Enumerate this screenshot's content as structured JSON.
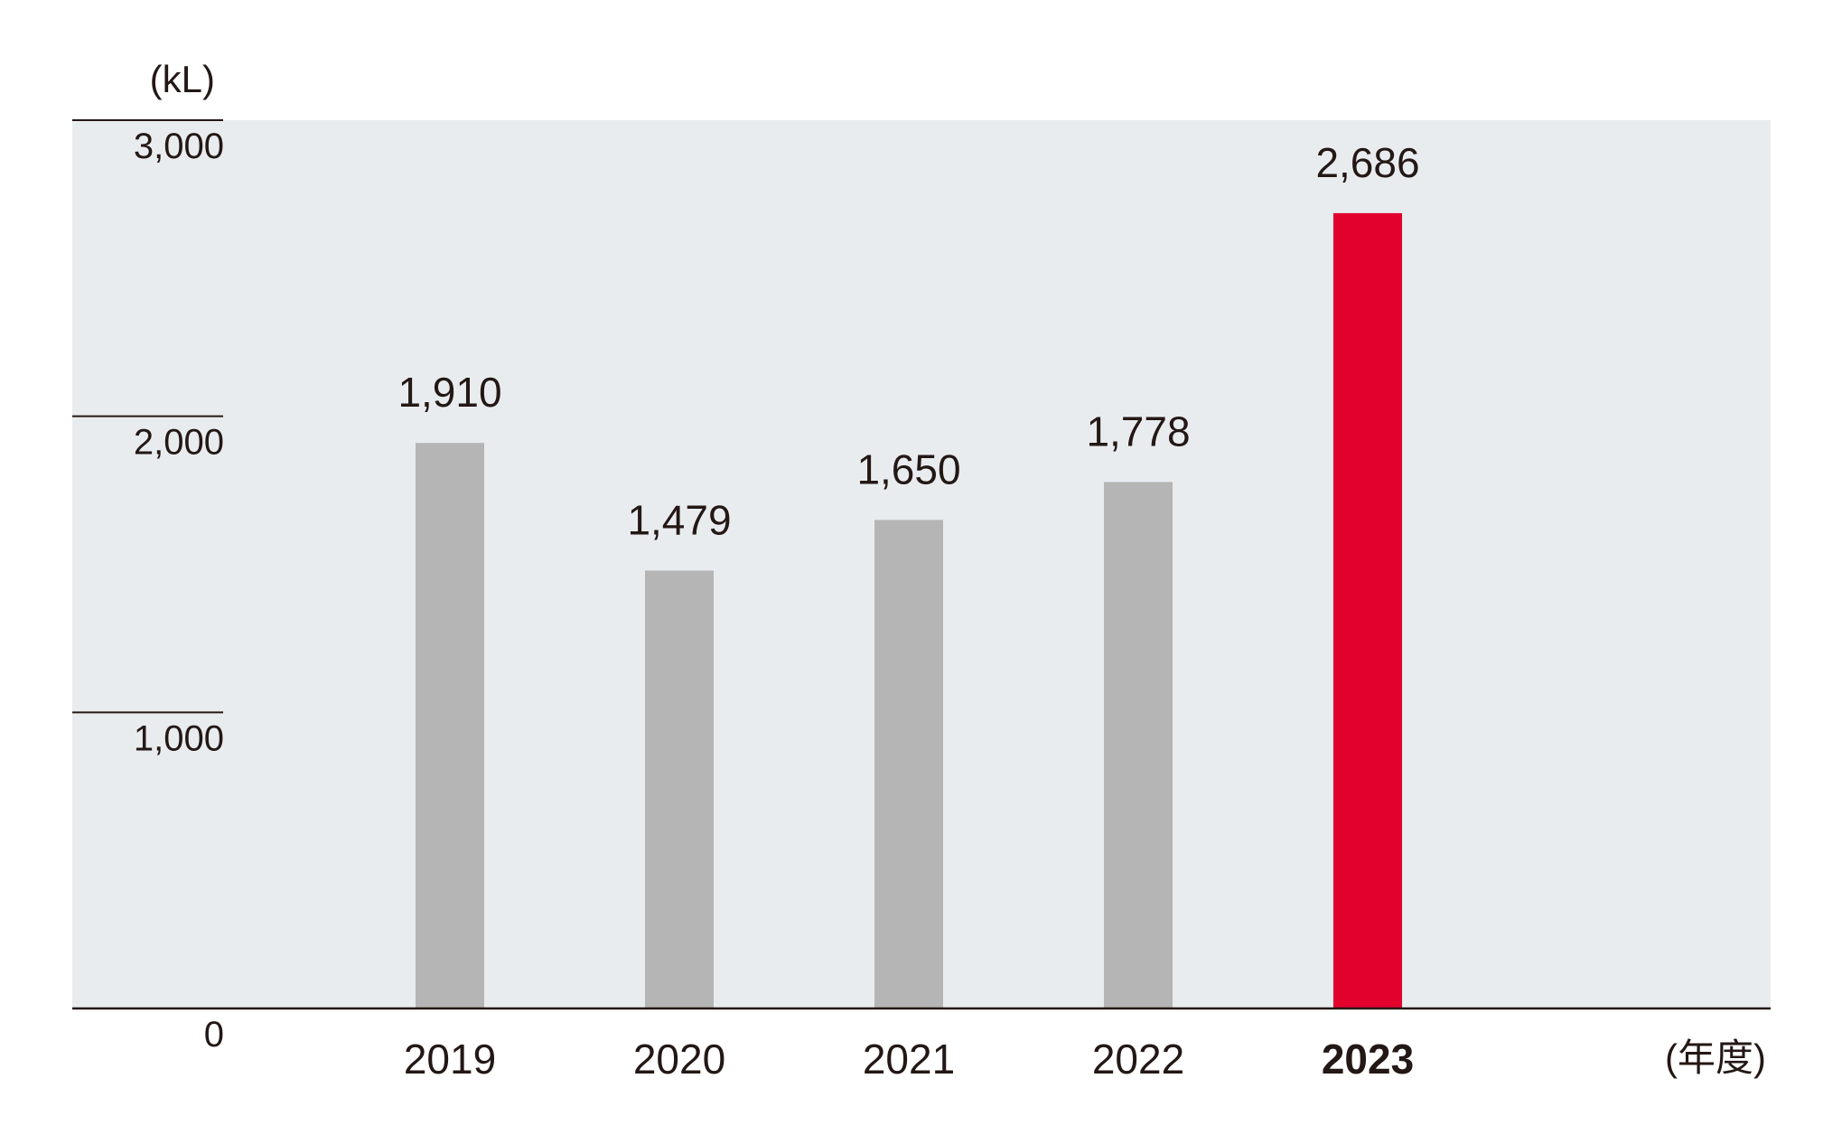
{
  "chart_data": {
    "type": "bar",
    "y_unit": "(kL)",
    "x_unit": "(年度)",
    "categories": [
      "2019",
      "2020",
      "2021",
      "2022",
      "2023"
    ],
    "values": [
      1910,
      1479,
      1650,
      1778,
      2686
    ],
    "value_labels": [
      "1,910",
      "1,479",
      "1,650",
      "1,778",
      "2,686"
    ],
    "highlight_index": 4,
    "ylim": [
      0,
      3000
    ],
    "yticks": [
      {
        "value": 0,
        "label": "0"
      },
      {
        "value": 1000,
        "label": "1,000"
      },
      {
        "value": 2000,
        "label": "2,000"
      },
      {
        "value": 3000,
        "label": "3,000"
      }
    ],
    "grid": false,
    "colors": {
      "bar": "#b5b5b5",
      "highlight": "#e2002d",
      "plot_background": "#e9ecef",
      "axis": "#231815",
      "text": "#231815"
    }
  }
}
